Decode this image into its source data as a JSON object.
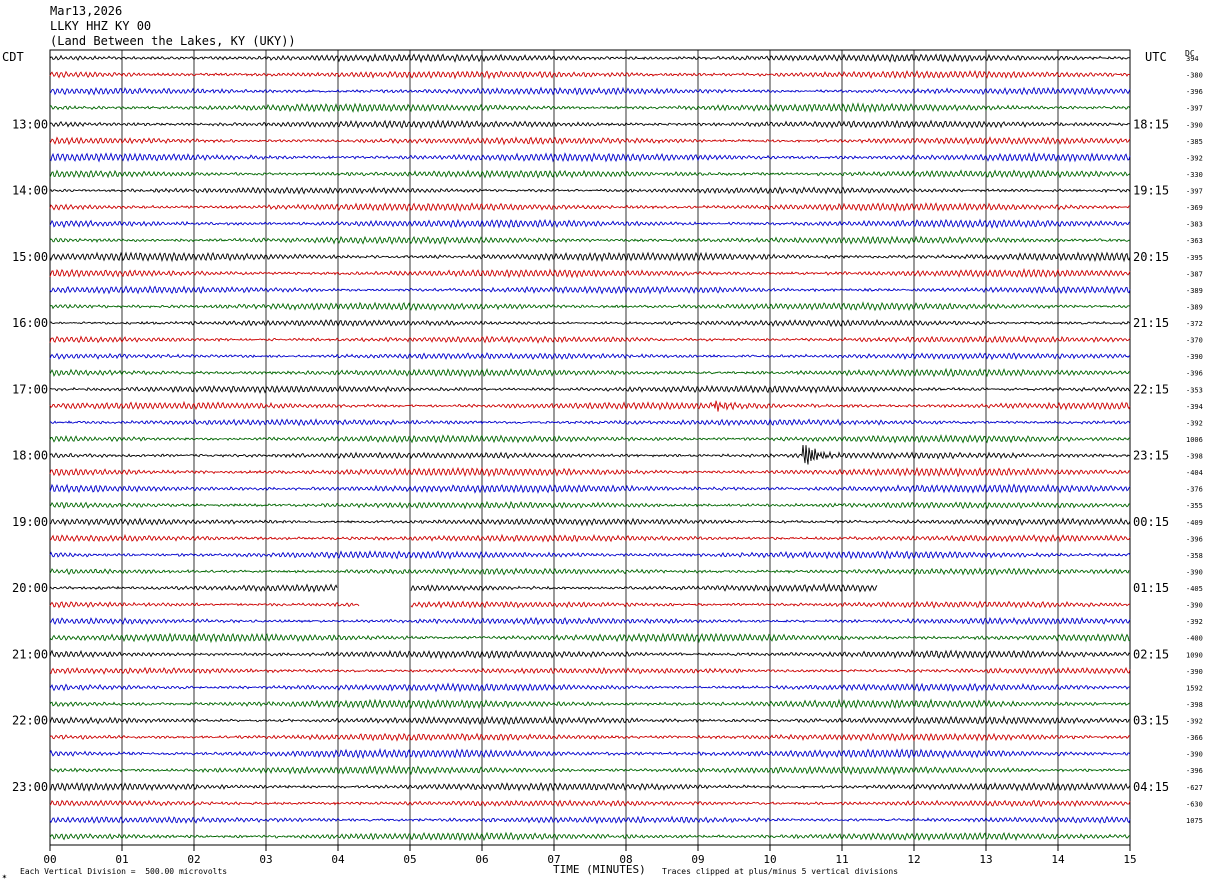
{
  "header": {
    "date": "Mar13,2026",
    "station": "LLKY HHZ KY 00",
    "location": "(Land Between the Lakes, KY (UKY))"
  },
  "left_zone": "CDT",
  "right_zone": "UTC",
  "dc_label": "DC",
  "footer": {
    "scale_note": "Each Vertical Division =  500.00 microvolts",
    "clip_note": "Traces clipped at plus/minus 5 vertical divisions",
    "mark": "✶"
  },
  "colors": [
    "#000000",
    "#cc0000",
    "#0000cc",
    "#006600"
  ],
  "chart_data": {
    "type": "line",
    "title": "LLKY HHZ KY 00",
    "xlabel": "TIME (MINUTES)",
    "xlim": [
      0,
      15
    ],
    "x_ticks": [
      "00",
      "01",
      "02",
      "03",
      "04",
      "05",
      "06",
      "07",
      "08",
      "09",
      "10",
      "11",
      "12",
      "13",
      "14",
      "15"
    ],
    "rows": 48,
    "minutes_per_row": 15,
    "left_hour_labels": [
      "13:00",
      "14:00",
      "15:00",
      "16:00",
      "17:00",
      "18:00",
      "19:00",
      "20:00",
      "21:00",
      "22:00",
      "23:00"
    ],
    "right_hour_labels": [
      "18:15",
      "19:15",
      "20:15",
      "21:15",
      "22:15",
      "23:15",
      "00:15",
      "01:15",
      "02:15",
      "03:15",
      "04:15"
    ],
    "first_labeled_row": 4,
    "dc_offsets": [
      "394",
      "-380",
      "-396",
      "-397",
      "-390",
      "-385",
      "-392",
      "-330",
      "-397",
      "-369",
      "-383",
      "-363",
      "-395",
      "-387",
      "-389",
      "-389",
      "-372",
      "-370",
      "-390",
      "-396",
      "-353",
      "-394",
      "-392",
      "1006",
      "-398",
      "-404",
      "-376",
      "-355",
      "-409",
      "-396",
      "-358",
      "-390",
      "-405",
      "-390",
      "-392",
      "-400",
      "1090",
      "-390",
      "1592",
      "-398",
      "-392",
      "-366",
      "-390",
      "-396",
      "-627",
      "-630",
      "1075"
    ],
    "events": [
      {
        "row": 21,
        "minute": 9.2,
        "note": "burst"
      },
      {
        "row": 24,
        "minute": 10.45,
        "note": "local event"
      }
    ],
    "gaps": [
      {
        "row": 31,
        "start": 15,
        "end": 15
      },
      {
        "row": 32,
        "start": 4.0,
        "end": 5.0
      },
      {
        "row": 33,
        "start": 4.3,
        "end": 5.0
      },
      {
        "row": 32,
        "start": 11.5,
        "end": 15
      }
    ]
  }
}
